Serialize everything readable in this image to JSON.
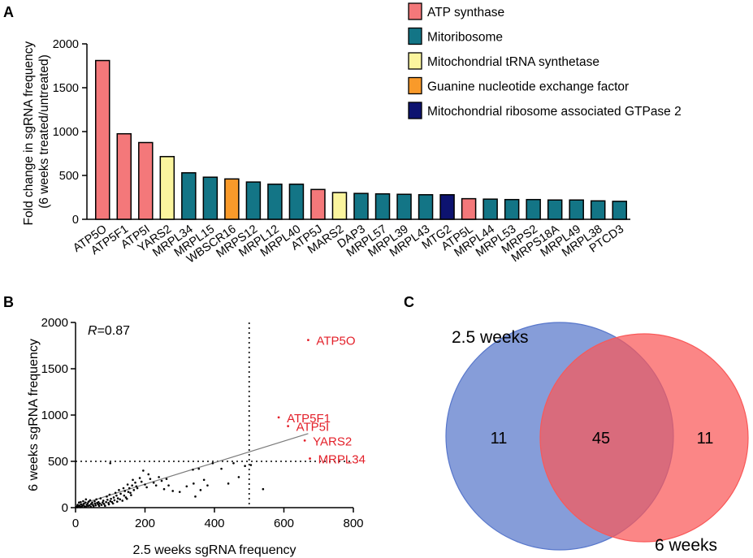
{
  "panels": {
    "a": "A",
    "b": "B",
    "c": "C"
  },
  "legend": [
    {
      "label": "ATP synthase",
      "color": "#f4787a"
    },
    {
      "label": "Mitoribosome",
      "color": "#137586"
    },
    {
      "label": "Mitochondrial tRNA synthetase",
      "color": "#fbf59e"
    },
    {
      "label": "Guanine nucleotide exchange factor",
      "color": "#f99a2a"
    },
    {
      "label": "Mitochondrial ribosome associated GTPase 2",
      "color": "#0d1370"
    }
  ],
  "chart_data": [
    {
      "type": "bar",
      "title": "",
      "ylabel_line1": "Fold change in sgRNA frequency",
      "ylabel_line2": "(6 weeks treated/untreated)",
      "xlabel": "",
      "ylim": [
        0,
        2000
      ],
      "yticks": [
        0,
        500,
        1000,
        1500,
        2000
      ],
      "categories": [
        "ATP5O",
        "ATP5F1",
        "ATP5I",
        "YARS2",
        "MRPL34",
        "MRPL15",
        "WBSCR16",
        "MRPS12",
        "MRPL12",
        "MRPL40",
        "ATP5J",
        "MARS2",
        "DAP3",
        "MRPL57",
        "MRPL39",
        "MRPL43",
        "MTG2",
        "ATP5L",
        "MRPL44",
        "MRPL53",
        "MRPS2",
        "MRPS18A",
        "MRPL49",
        "MRPL38",
        "PTCD3"
      ],
      "values": [
        1810,
        975,
        875,
        715,
        530,
        480,
        460,
        425,
        400,
        400,
        340,
        305,
        295,
        290,
        285,
        280,
        280,
        235,
        230,
        225,
        225,
        220,
        220,
        210,
        205
      ],
      "groups": [
        0,
        0,
        0,
        2,
        1,
        1,
        3,
        1,
        1,
        1,
        0,
        2,
        1,
        1,
        1,
        1,
        4,
        0,
        1,
        1,
        1,
        1,
        1,
        1,
        1
      ]
    },
    {
      "type": "scatter",
      "xlabel": "2.5 weeks sgRNA frequency",
      "ylabel": "6 weeks sgRNA frequency",
      "xlim": [
        0,
        800
      ],
      "ylim": [
        0,
        2000
      ],
      "xticks": [
        0,
        200,
        400,
        600,
        800
      ],
      "yticks": [
        0,
        500,
        1000,
        1500,
        2000
      ],
      "annotation_r": "R",
      "annotation_value": "=0.87",
      "vline": 500,
      "hline": 500,
      "trend": [
        [
          0,
          20
        ],
        [
          670,
          800
        ]
      ],
      "highlight_color": "#e3202a",
      "highlights": [
        {
          "label": "ATP5O",
          "x": 670,
          "y": 1810
        },
        {
          "label": "ATP5F1",
          "x": 585,
          "y": 975
        },
        {
          "label": "ATP5I",
          "x": 612,
          "y": 880
        },
        {
          "label": "YARS2",
          "x": 660,
          "y": 725
        },
        {
          "label": "MRPL34",
          "x": 675,
          "y": 530
        }
      ],
      "points": [
        [
          2,
          8
        ],
        [
          4,
          15
        ],
        [
          5,
          4
        ],
        [
          6,
          30
        ],
        [
          8,
          12
        ],
        [
          10,
          55
        ],
        [
          12,
          20
        ],
        [
          14,
          5
        ],
        [
          15,
          60
        ],
        [
          16,
          35
        ],
        [
          18,
          10
        ],
        [
          20,
          25
        ],
        [
          22,
          70
        ],
        [
          24,
          40
        ],
        [
          25,
          15
        ],
        [
          28,
          55
        ],
        [
          30,
          8
        ],
        [
          30,
          90
        ],
        [
          32,
          30
        ],
        [
          35,
          45
        ],
        [
          36,
          18
        ],
        [
          38,
          65
        ],
        [
          40,
          25
        ],
        [
          42,
          80
        ],
        [
          44,
          10
        ],
        [
          45,
          40
        ],
        [
          48,
          55
        ],
        [
          50,
          30
        ],
        [
          52,
          15
        ],
        [
          55,
          70
        ],
        [
          56,
          45
        ],
        [
          58,
          25
        ],
        [
          60,
          90
        ],
        [
          62,
          50
        ],
        [
          65,
          35
        ],
        [
          66,
          60
        ],
        [
          68,
          20
        ],
        [
          70,
          45
        ],
        [
          72,
          100
        ],
        [
          75,
          30
        ],
        [
          78,
          55
        ],
        [
          80,
          75
        ],
        [
          82,
          40
        ],
        [
          85,
          20
        ],
        [
          88,
          60
        ],
        [
          90,
          120
        ],
        [
          92,
          85
        ],
        [
          95,
          50
        ],
        [
          96,
          35
        ],
        [
          98,
          140
        ],
        [
          100,
          70
        ],
        [
          100,
          480
        ],
        [
          102,
          95
        ],
        [
          105,
          60
        ],
        [
          108,
          45
        ],
        [
          110,
          110
        ],
        [
          112,
          80
        ],
        [
          115,
          160
        ],
        [
          118,
          130
        ],
        [
          120,
          65
        ],
        [
          122,
          100
        ],
        [
          125,
          190
        ],
        [
          128,
          90
        ],
        [
          130,
          150
        ],
        [
          135,
          75
        ],
        [
          138,
          210
        ],
        [
          140,
          130
        ],
        [
          142,
          180
        ],
        [
          145,
          110
        ],
        [
          148,
          95
        ],
        [
          150,
          250
        ],
        [
          152,
          170
        ],
        [
          155,
          210
        ],
        [
          158,
          160
        ],
        [
          160,
          135
        ],
        [
          163,
          240
        ],
        [
          165,
          300
        ],
        [
          168,
          190
        ],
        [
          172,
          270
        ],
        [
          175,
          230
        ],
        [
          178,
          210
        ],
        [
          185,
          320
        ],
        [
          190,
          280
        ],
        [
          195,
          400
        ],
        [
          200,
          250
        ],
        [
          205,
          220
        ],
        [
          210,
          360
        ],
        [
          215,
          310
        ],
        [
          225,
          270
        ],
        [
          232,
          240
        ],
        [
          240,
          330
        ],
        [
          248,
          290
        ],
        [
          255,
          200
        ],
        [
          262,
          310
        ],
        [
          268,
          240
        ],
        [
          280,
          180
        ],
        [
          300,
          170
        ],
        [
          320,
          230
        ],
        [
          338,
          410
        ],
        [
          340,
          260
        ],
        [
          345,
          120
        ],
        [
          355,
          420
        ],
        [
          360,
          190
        ],
        [
          370,
          300
        ],
        [
          380,
          240
        ],
        [
          395,
          480
        ],
        [
          420,
          420
        ],
        [
          440,
          260
        ],
        [
          455,
          480
        ],
        [
          470,
          330
        ],
        [
          488,
          450
        ],
        [
          505,
          460
        ],
        [
          540,
          200
        ]
      ]
    },
    {
      "type": "venn",
      "sets": [
        {
          "label": "2.5 weeks",
          "color": "#5877cb"
        },
        {
          "label": "6 weeks",
          "color": "#f95858"
        }
      ],
      "counts": {
        "left_only": "11",
        "both": "45",
        "right_only": "11"
      }
    }
  ]
}
